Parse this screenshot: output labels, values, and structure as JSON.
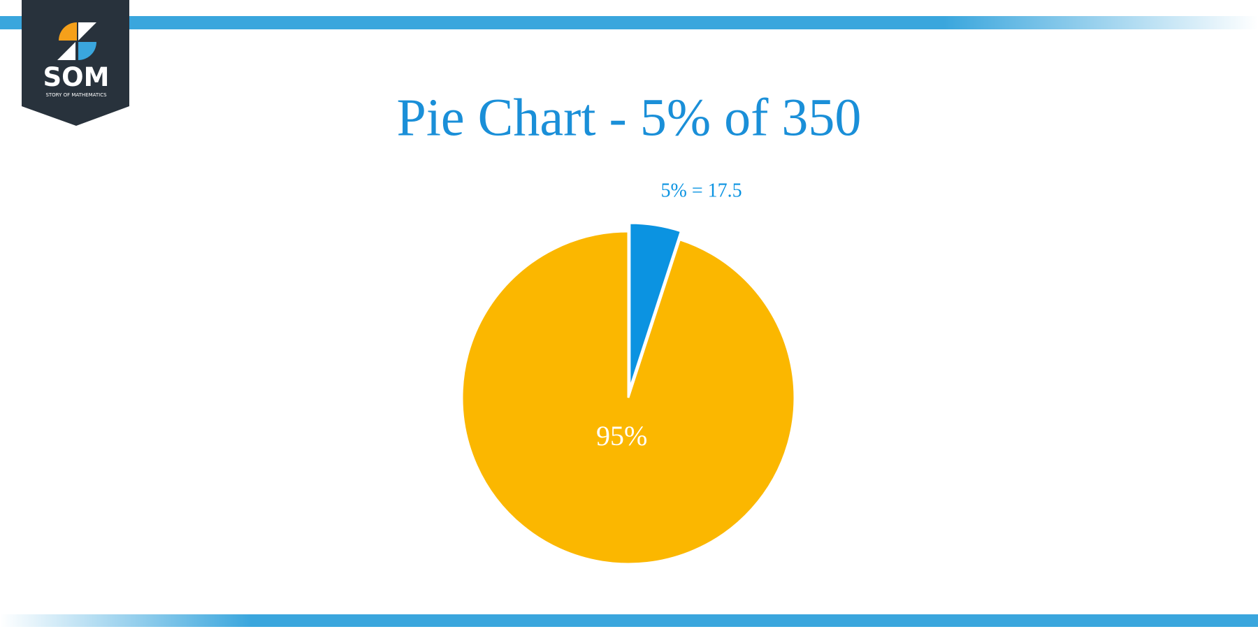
{
  "logo": {
    "name": "SOM",
    "tagline": "STORY OF MATHEMATICS"
  },
  "chart_data": {
    "type": "pie",
    "title": "Pie Chart - 5% of 350",
    "values": [
      5,
      95
    ],
    "value_labels": [
      "5% = 17.5",
      "95%"
    ],
    "colors": [
      "#0b93e1",
      "#fbb700"
    ],
    "exploded": [
      true,
      false
    ]
  }
}
